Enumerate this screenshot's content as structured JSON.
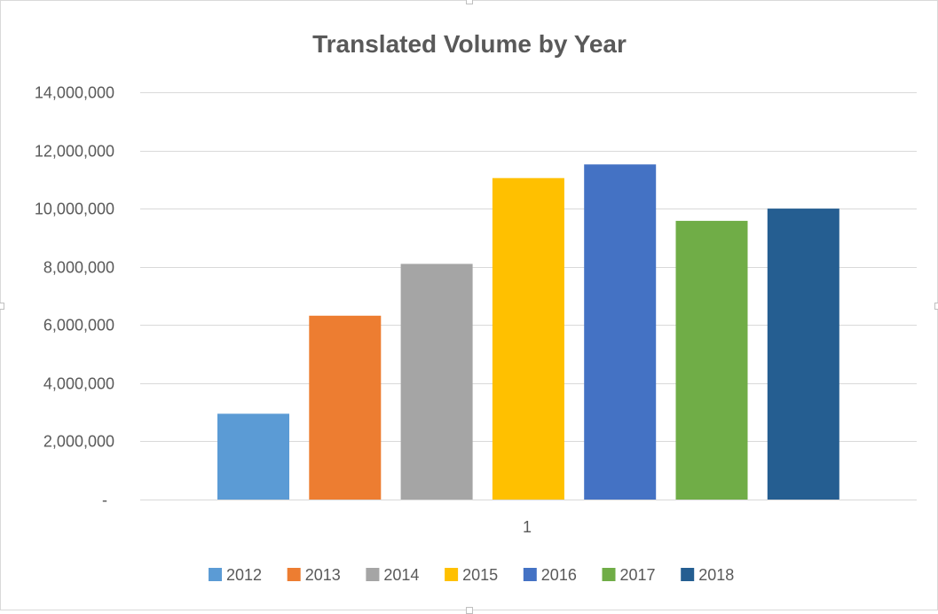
{
  "chart_data": {
    "type": "bar",
    "title": "Translated Volume by Year",
    "categories": [
      "1"
    ],
    "series": [
      {
        "name": "2012",
        "values": [
          2950000
        ],
        "color": "#5b9bd5"
      },
      {
        "name": "2013",
        "values": [
          6320000
        ],
        "color": "#ed7d31"
      },
      {
        "name": "2014",
        "values": [
          8100000
        ],
        "color": "#a5a5a5"
      },
      {
        "name": "2015",
        "values": [
          11050000
        ],
        "color": "#ffc000"
      },
      {
        "name": "2016",
        "values": [
          11520000
        ],
        "color": "#4472c4"
      },
      {
        "name": "2017",
        "values": [
          9580000
        ],
        "color": "#70ad47"
      },
      {
        "name": "2018",
        "values": [
          10000000
        ],
        "color": "#255e91"
      }
    ],
    "ylim": [
      0,
      14000000
    ],
    "yticks": [
      {
        "value": 0,
        "label": "-"
      },
      {
        "value": 2000000,
        "label": "2,000,000"
      },
      {
        "value": 4000000,
        "label": "4,000,000"
      },
      {
        "value": 6000000,
        "label": "6,000,000"
      },
      {
        "value": 8000000,
        "label": "8,000,000"
      },
      {
        "value": 10000000,
        "label": "10,000,000"
      },
      {
        "value": 12000000,
        "label": "12,000,000"
      },
      {
        "value": 14000000,
        "label": "14,000,000"
      }
    ],
    "xlabel": "",
    "ylabel": "",
    "grid": true,
    "legend": "bottom",
    "gridline_color": "#d9d9d9"
  }
}
